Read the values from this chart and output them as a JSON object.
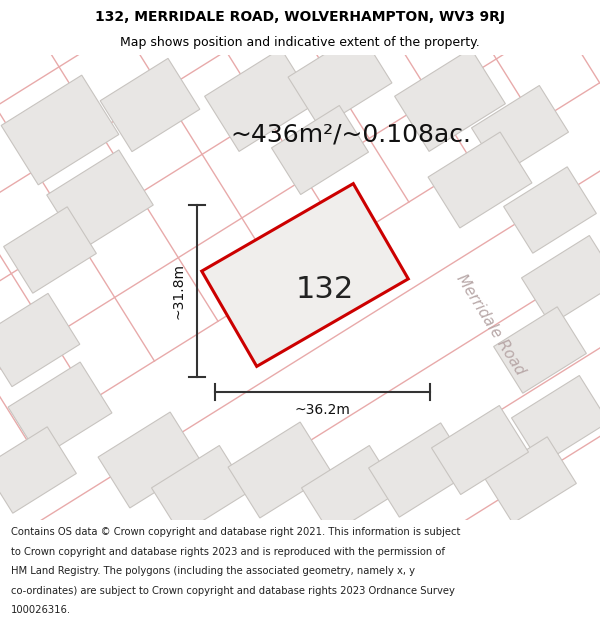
{
  "title_line1": "132, MERRIDALE ROAD, WOLVERHAMPTON, WV3 9RJ",
  "title_line2": "Map shows position and indicative extent of the property.",
  "area_text": "~436m²/~0.108ac.",
  "label_132": "132",
  "dim_width": "~36.2m",
  "dim_height": "~31.8m",
  "road_label": "Merridale Road",
  "footer_lines": [
    "Contains OS data © Crown copyright and database right 2021. This information is subject",
    "to Crown copyright and database rights 2023 and is reproduced with the permission of",
    "HM Land Registry. The polygons (including the associated geometry, namely x, y",
    "co-ordinates) are subject to Crown copyright and database rights 2023 Ordnance Survey",
    "100026316."
  ],
  "bg_color": "#ffffff",
  "map_bg": "#f8f6f4",
  "property_fill": "#f0eeec",
  "property_edge": "#cc0000",
  "parcel_fill": "#e8e6e4",
  "parcel_edge": "#c8c4c0",
  "road_line_color": "#e8aaaa",
  "road_line_color2": "#ccaaaa",
  "dim_line_color": "#333333",
  "title_bg": "#ffffff",
  "footer_bg": "#ffffff",
  "title_fontsize": 10,
  "subtitle_fontsize": 9,
  "area_fontsize": 18,
  "label_fontsize": 22,
  "dim_fontsize": 10,
  "road_fontsize": 11,
  "footer_fontsize": 7.2
}
